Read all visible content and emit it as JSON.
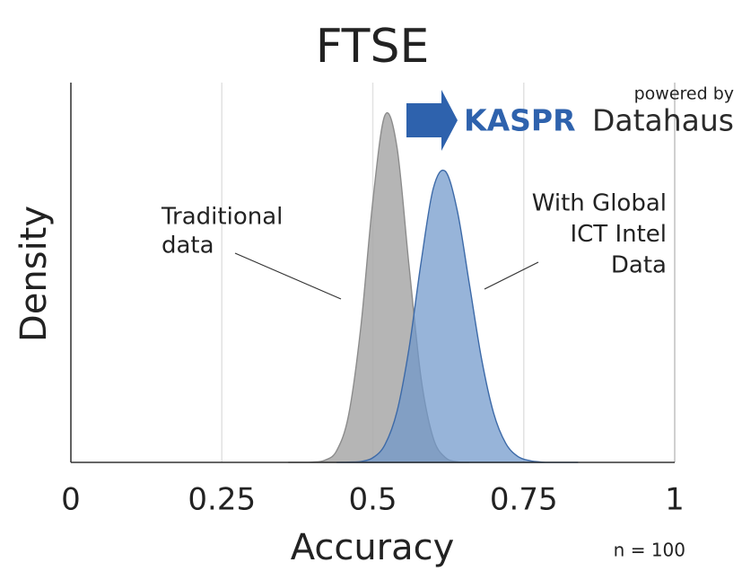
{
  "chart_data": {
    "type": "density",
    "title": "FTSE",
    "xlabel": "Accuracy",
    "ylabel": "Density",
    "xlim": [
      0,
      1
    ],
    "xticks": [
      0,
      0.25,
      0.5,
      0.75,
      1
    ],
    "ylim": [
      0,
      13.2
    ],
    "grid": true,
    "series": [
      {
        "color": "#a8a8a8",
        "edge": "#8c8c8c",
        "x": [
          0.36,
          0.38,
          0.4,
          0.42,
          0.44,
          0.46,
          0.48,
          0.5,
          0.52,
          0.54,
          0.56,
          0.58,
          0.6,
          0.62,
          0.64,
          0.66
        ],
        "values": [
          0.0,
          0.0,
          0.01,
          0.07,
          0.4,
          1.65,
          4.67,
          9.07,
          12.06,
          10.96,
          6.83,
          2.92,
          0.85,
          0.17,
          0.02,
          0.0
        ]
      },
      {
        "color": "#6f97cb",
        "edge": "#3d6aa8",
        "x": [
          0.44,
          0.46,
          0.48,
          0.5,
          0.52,
          0.54,
          0.56,
          0.58,
          0.6,
          0.62,
          0.64,
          0.66,
          0.68,
          0.7,
          0.72,
          0.74,
          0.76,
          0.78,
          0.8,
          0.84
        ],
        "values": [
          0.0,
          0.01,
          0.03,
          0.16,
          0.61,
          1.76,
          3.96,
          6.96,
          9.51,
          10.12,
          8.74,
          6.19,
          3.61,
          1.72,
          0.67,
          0.21,
          0.06,
          0.01,
          0.0,
          0.0
        ]
      }
    ],
    "annotations": [
      {
        "lines": [
          "Traditional",
          "data"
        ]
      },
      {
        "lines": [
          "With Global",
          "ICT Intel",
          "Data"
        ]
      }
    ],
    "note": "n = 100"
  },
  "branding": {
    "powered_by": "powered by",
    "brand": "KASPR",
    "brand_suffix": "Datahaus"
  }
}
